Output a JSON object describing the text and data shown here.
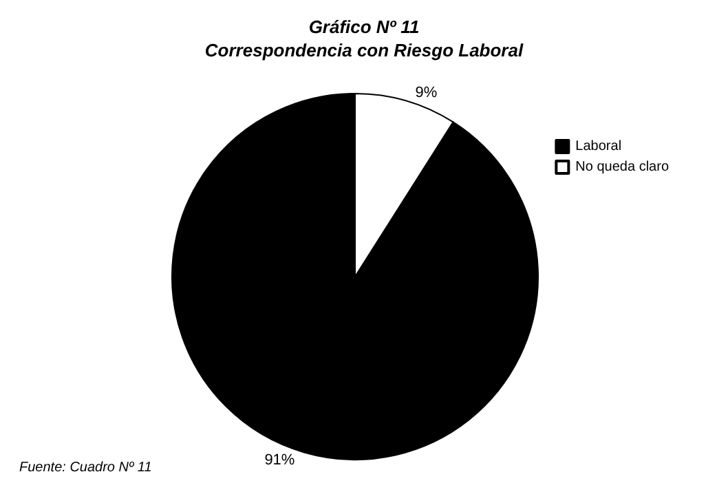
{
  "chart_data": {
    "type": "pie",
    "title": "Gráfico Nº 11",
    "subtitle": "Correspondencia con Riesgo Laboral",
    "categories": [
      "Laboral",
      "No queda claro"
    ],
    "values": [
      91,
      9
    ],
    "colors": [
      "#000000",
      "#ffffff"
    ],
    "value_labels": [
      "91%",
      "9%"
    ],
    "legend": "top right",
    "annotations": [
      "Fuente: Cuadro Nº 11"
    ]
  }
}
